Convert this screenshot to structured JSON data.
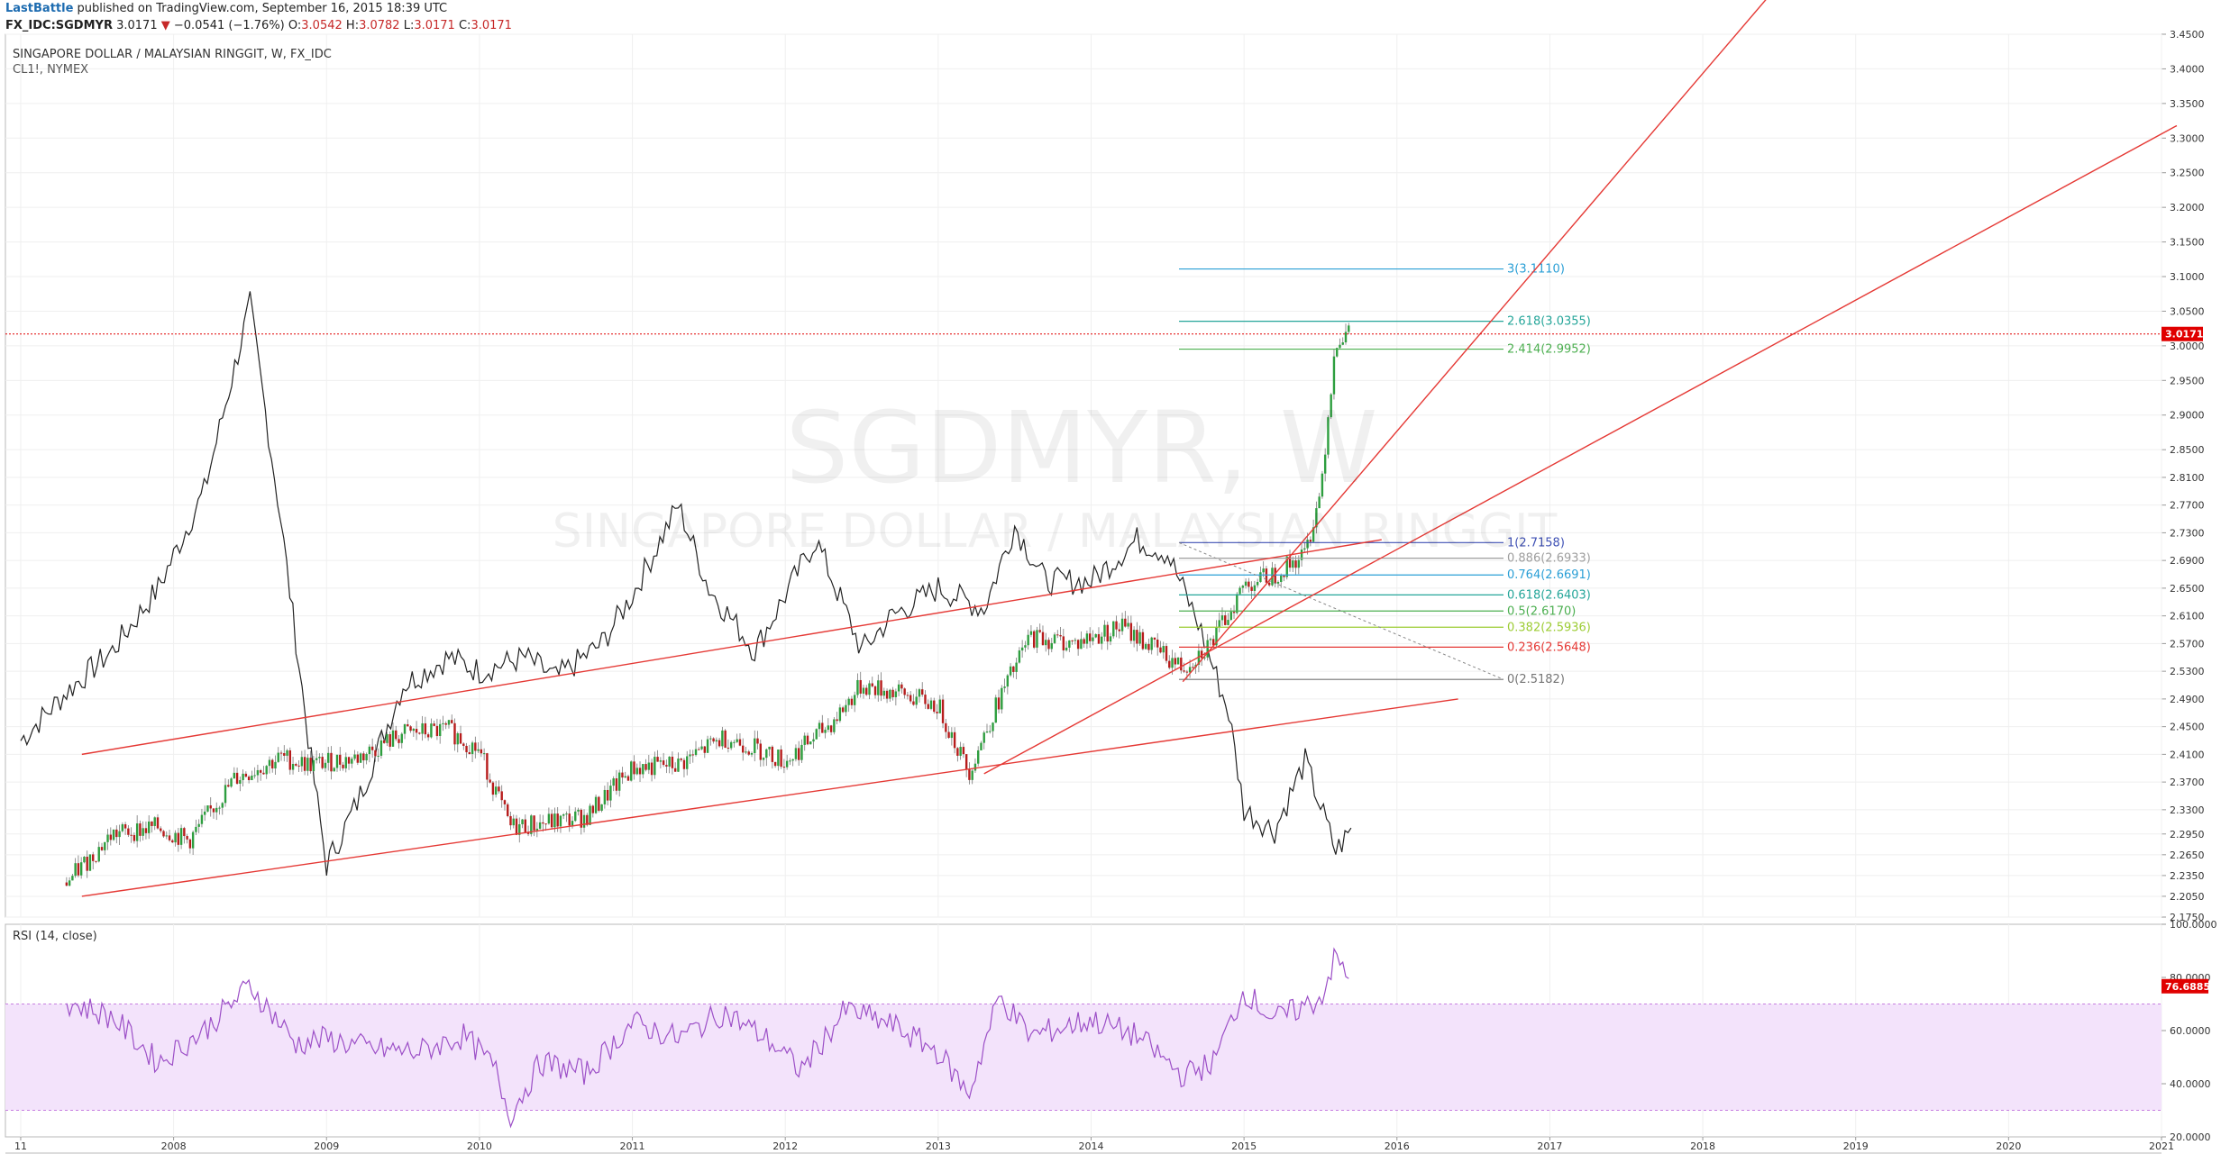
{
  "header": {
    "author": "LastBattle",
    "published_text": " published on TradingView.com, September 16, 2015 18:39 UTC",
    "symbol": "FX_IDC:SGDMYR",
    "last": "3.0171",
    "arrow": "▼",
    "change": "−0.0541 (−1.76%)",
    "o_label": "O:",
    "o_value": "3.0542",
    "h_label": "H:",
    "h_value": "3.0782",
    "l_label": "L:",
    "l_value": "3.0171",
    "c_label": "C:",
    "c_value": "3.0171"
  },
  "legend": {
    "title": "SINGAPORE DOLLAR / MALAYSIAN RINGGIT, W, FX_IDC",
    "overlay": "CL1!, NYMEX"
  },
  "watermark": {
    "big": "SGDMYR, W",
    "small": "SINGAPORE DOLLAR / MALAYSIAN RINGGIT"
  },
  "price_panel": {
    "last_price_tag": "3.0171",
    "y_ticks": [
      "3.4500",
      "3.4000",
      "3.3500",
      "3.3000",
      "3.2500",
      "3.2000",
      "3.1500",
      "3.1000",
      "3.0500",
      "3.0000",
      "2.9500",
      "2.9000",
      "2.8500",
      "2.8100",
      "2.7700",
      "2.7300",
      "2.6900",
      "2.6500",
      "2.6100",
      "2.5700",
      "2.5300",
      "2.4900",
      "2.4500",
      "2.4100",
      "2.3700",
      "2.3300",
      "2.2950",
      "2.2650",
      "2.2350",
      "2.2050",
      "2.1750"
    ],
    "fib_levels": [
      {
        "label": "3(3.1110)",
        "price": 3.111,
        "color": "#2a9fd6"
      },
      {
        "label": "2.618(3.0355)",
        "price": 3.0355,
        "color": "#26a69a"
      },
      {
        "label": "2.414(2.9952)",
        "price": 2.9952,
        "color": "#4caf50"
      },
      {
        "label": "1(2.7158)",
        "price": 2.7158,
        "color": "#3f51b5"
      },
      {
        "label": "0.886(2.6933)",
        "price": 2.6933,
        "color": "#9e9e9e"
      },
      {
        "label": "0.764(2.6691)",
        "price": 2.6691,
        "color": "#2a9fd6"
      },
      {
        "label": "0.618(2.6403)",
        "price": 2.6403,
        "color": "#26a69a"
      },
      {
        "label": "0.5(2.6170)",
        "price": 2.617,
        "color": "#4caf50"
      },
      {
        "label": "0.382(2.5936)",
        "price": 2.5936,
        "color": "#9ccc33"
      },
      {
        "label": "0.236(2.5648)",
        "price": 2.5648,
        "color": "#e53935"
      },
      {
        "label": "0(2.5182)",
        "price": 2.5182,
        "color": "#757575"
      }
    ]
  },
  "rsi_panel": {
    "title": "RSI (14, close)",
    "y_ticks": [
      "100.0000",
      "80.0000",
      "60.0000",
      "40.0000",
      "20.0000"
    ],
    "last_value_tag": "76.6885",
    "band_upper": 70,
    "band_lower": 30
  },
  "x_axis": {
    "ticks": [
      "11",
      "2008",
      "2009",
      "2010",
      "2011",
      "2012",
      "2013",
      "2014",
      "2015",
      "2016",
      "2017",
      "2018",
      "2019",
      "2020",
      "2021"
    ]
  },
  "colors": {
    "up": "#2e9e3f",
    "down": "#b71c1c",
    "trendline": "#e53935",
    "rsi": "#9c4fc7",
    "rsi_band": "#f3e3fb",
    "overlay": "#222222",
    "last_price": "#e00000"
  },
  "chart_data": {
    "type": "line",
    "title": "SINGAPORE DOLLAR / MALAYSIAN RINGGIT, W, FX_IDC",
    "series": [
      {
        "name": "SGDMYR",
        "x": [
          2007.3,
          2007.6,
          2007.9,
          2008.1,
          2008.4,
          2008.7,
          2008.9,
          2009.2,
          2009.5,
          2009.8,
          2010.0,
          2010.2,
          2010.4,
          2010.7,
          2011.0,
          2011.3,
          2011.6,
          2011.8,
          2012.0,
          2012.3,
          2012.5,
          2012.8,
          2013.0,
          2013.2,
          2013.4,
          2013.6,
          2013.9,
          2014.2,
          2014.4,
          2014.6,
          2014.8,
          2015.0,
          2015.2,
          2015.4,
          2015.5,
          2015.6,
          2015.7
        ],
        "values": [
          2.225,
          2.295,
          2.305,
          2.285,
          2.375,
          2.405,
          2.395,
          2.405,
          2.44,
          2.445,
          2.415,
          2.305,
          2.31,
          2.32,
          2.39,
          2.395,
          2.435,
          2.42,
          2.4,
          2.455,
          2.51,
          2.495,
          2.48,
          2.385,
          2.49,
          2.58,
          2.57,
          2.595,
          2.565,
          2.535,
          2.575,
          2.655,
          2.67,
          2.7,
          2.79,
          3.01,
          3.017
        ]
      },
      {
        "name": "CL1!, NYMEX",
        "x": [
          2007.0,
          2007.3,
          2007.6,
          2007.9,
          2008.2,
          2008.5,
          2008.7,
          2008.9,
          2009.0,
          2009.2,
          2009.5,
          2009.8,
          2010.0,
          2010.3,
          2010.5,
          2010.8,
          2011.0,
          2011.3,
          2011.5,
          2011.8,
          2012.0,
          2012.2,
          2012.5,
          2012.7,
          2013.0,
          2013.3,
          2013.5,
          2013.7,
          2014.0,
          2014.3,
          2014.5,
          2014.7,
          2014.9,
          2015.0,
          2015.2,
          2015.4,
          2015.6,
          2015.7
        ],
        "values": [
          2.43,
          2.5,
          2.56,
          2.65,
          2.79,
          3.06,
          2.75,
          2.4,
          2.25,
          2.34,
          2.51,
          2.55,
          2.53,
          2.55,
          2.52,
          2.57,
          2.64,
          2.77,
          2.65,
          2.56,
          2.64,
          2.72,
          2.56,
          2.61,
          2.65,
          2.62,
          2.74,
          2.66,
          2.66,
          2.72,
          2.7,
          2.6,
          2.47,
          2.33,
          2.3,
          2.4,
          2.27,
          2.3
        ]
      }
    ],
    "rsi": {
      "name": "RSI (14, close)",
      "ylim": [
        20,
        100
      ],
      "x": [
        2007.3,
        2007.6,
        2007.9,
        2008.2,
        2008.5,
        2008.8,
        2009.0,
        2009.3,
        2009.6,
        2009.9,
        2010.1,
        2010.2,
        2010.4,
        2010.7,
        2011.0,
        2011.3,
        2011.6,
        2011.9,
        2012.1,
        2012.4,
        2012.7,
        2013.0,
        2013.2,
        2013.4,
        2013.6,
        2014.0,
        2014.3,
        2014.6,
        2014.8,
        2015.0,
        2015.2,
        2015.5,
        2015.6,
        2015.7
      ],
      "values": [
        71,
        65,
        48,
        60,
        77,
        55,
        57,
        53,
        52,
        58,
        46,
        28,
        48,
        44,
        63,
        57,
        67,
        56,
        45,
        68,
        62,
        52,
        36,
        73,
        58,
        64,
        58,
        43,
        48,
        75,
        64,
        72,
        88,
        77
      ]
    },
    "ylim": [
      2.175,
      3.45
    ],
    "xlim": [
      2006.9,
      2021.0
    ]
  }
}
